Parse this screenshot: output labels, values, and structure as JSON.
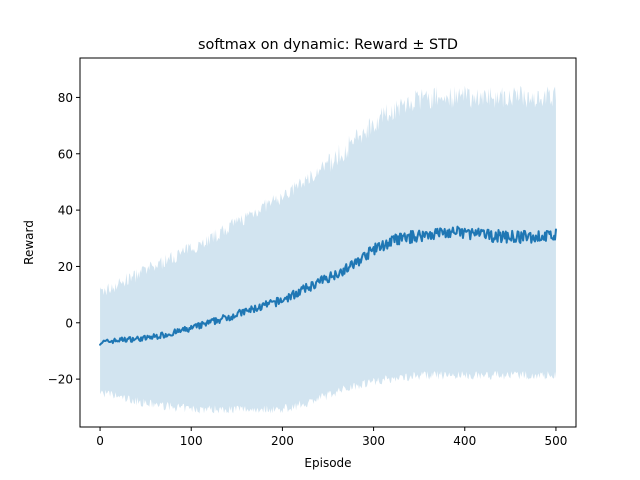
{
  "chart_data": {
    "type": "line",
    "title": "softmax on dynamic: Reward ± STD",
    "xlabel": "Episode",
    "ylabel": "Reward",
    "xlim": [
      -22,
      522
    ],
    "ylim": [
      -37,
      94
    ],
    "xticks": [
      0,
      100,
      200,
      300,
      400,
      500
    ],
    "yticks": [
      -20,
      0,
      20,
      40,
      60,
      80
    ],
    "xtick_labels": [
      "0",
      "100",
      "200",
      "300",
      "400",
      "500"
    ],
    "ytick_labels": [
      "−20",
      "0",
      "20",
      "40",
      "60",
      "80"
    ],
    "grid": false,
    "legend": "none",
    "series": [
      {
        "x": [
          0,
          25,
          50,
          75,
          100,
          125,
          150,
          175,
          200,
          225,
          250,
          275,
          300,
          325,
          350,
          375,
          400,
          425,
          450,
          475,
          500
        ],
        "mean": [
          -7,
          -6,
          -5.5,
          -4,
          -2,
          0.5,
          3,
          5.5,
          8,
          12,
          16,
          20,
          26,
          29.5,
          31,
          32,
          32,
          31,
          30.5,
          30.5,
          31
        ],
        "upper": [
          11,
          15,
          19,
          23,
          27,
          31,
          36,
          41,
          45,
          51,
          57,
          64,
          72,
          77,
          80,
          81,
          81,
          81,
          81,
          81,
          81
        ],
        "lower": [
          -25,
          -27,
          -29,
          -30,
          -31,
          -31,
          -31,
          -31,
          -31,
          -29,
          -26,
          -23,
          -21,
          -20,
          -19,
          -19,
          -19,
          -19,
          -19,
          -19,
          -19
        ]
      }
    ],
    "colors": {
      "line": "#1f77b4",
      "band": "#1f77b4"
    }
  }
}
